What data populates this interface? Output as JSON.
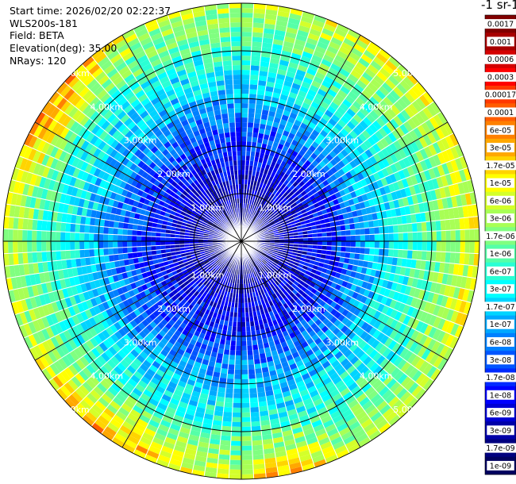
{
  "header": {
    "start_time": "Start time: 2026/02/20 02:22:37",
    "instrument": "WLS200s-181",
    "field": "Field: BETA",
    "elevation": "Elevation(deg): 35.00",
    "nrays": "NRays: 120"
  },
  "colorbar": {
    "unit_title": "-1 sr-1",
    "labels": [
      "0.0017",
      "0.001",
      "0.0006",
      "0.0003",
      "0.00017",
      "0.0001",
      "6e-05",
      "3e-05",
      "1.7e-05",
      "1e-05",
      "6e-06",
      "3e-06",
      "1.7e-06",
      "1e-06",
      "6e-07",
      "3e-07",
      "1.7e-07",
      "1e-07",
      "6e-08",
      "3e-08",
      "1.7e-08",
      "1e-08",
      "6e-09",
      "3e-09",
      "1.7e-09",
      "1e-09"
    ],
    "colors": [
      "#800000",
      "#a80000",
      "#d40000",
      "#ff0000",
      "#ff3800",
      "#ff5c00",
      "#ff8000",
      "#ffa800",
      "#ffd400",
      "#ffff00",
      "#d4ff2a",
      "#a8ff55",
      "#80ff80",
      "#55ffa8",
      "#2affd4",
      "#00ffff",
      "#00d4ff",
      "#00a8ff",
      "#0080ff",
      "#0055ff",
      "#002aff",
      "#0000ff",
      "#0000d4",
      "#0000a8",
      "#000080",
      "#000060"
    ]
  },
  "chart_data": {
    "type": "polar-ppi",
    "field": "BETA",
    "elevation_deg": 35.0,
    "n_rays": 120,
    "range_rings_km": [
      1,
      2,
      3,
      4,
      5
    ],
    "ring_labels": [
      "1.00km",
      "2.00km",
      "3.00km",
      "4.00km",
      "5.00km"
    ],
    "max_range_km": 5.0,
    "color_scale": "log",
    "value_range": [
      1e-09,
      0.0017
    ],
    "radial_profile_mean_log10": [
      {
        "range_km": 0.5,
        "log10_beta": -8.5
      },
      {
        "range_km": 1.0,
        "log10_beta": -8.3
      },
      {
        "range_km": 1.5,
        "log10_beta": -8.0
      },
      {
        "range_km": 2.0,
        "log10_beta": -7.7
      },
      {
        "range_km": 2.5,
        "log10_beta": -7.3
      },
      {
        "range_km": 3.0,
        "log10_beta": -6.9
      },
      {
        "range_km": 3.5,
        "log10_beta": -6.5
      },
      {
        "range_km": 4.0,
        "log10_beta": -6.2
      },
      {
        "range_km": 4.5,
        "log10_beta": -5.8
      },
      {
        "range_km": 5.0,
        "log10_beta": -5.4
      }
    ],
    "notes": "Enhanced backscatter (orange/red) in the outer ring toward the north-west and south-west/south edges."
  }
}
